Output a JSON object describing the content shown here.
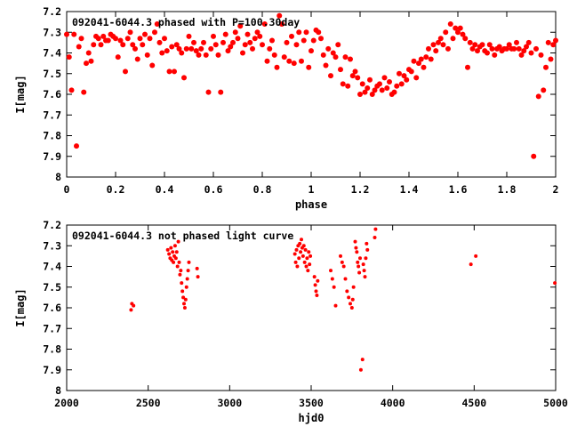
{
  "colors": {
    "points": "#ff0000",
    "axes": "#000000",
    "background": "#ffffff"
  },
  "chart_data": [
    {
      "type": "scatter",
      "title": "092041-6044.3 phased with P=100.30day",
      "xlabel": "phase",
      "ylabel": "I[mag]",
      "xlim": [
        0,
        2
      ],
      "ylim": [
        8,
        7.2
      ],
      "y_inverted": true,
      "grid": false,
      "xticks": [
        "0",
        "0.2",
        "0.4",
        "0.6",
        "0.8",
        "1",
        "1.2",
        "1.4",
        "1.6",
        "1.8",
        "2"
      ],
      "yticks": [
        "7.2",
        "7.3",
        "7.4",
        "7.5",
        "7.6",
        "7.7",
        "7.8",
        "7.9",
        "8"
      ],
      "points": [
        [
          0.0,
          7.31
        ],
        [
          0.01,
          7.42
        ],
        [
          0.02,
          7.58
        ],
        [
          0.03,
          7.31
        ],
        [
          0.04,
          7.85
        ],
        [
          0.05,
          7.37
        ],
        [
          0.06,
          7.33
        ],
        [
          0.07,
          7.59
        ],
        [
          0.08,
          7.45
        ],
        [
          0.09,
          7.4
        ],
        [
          0.1,
          7.44
        ],
        [
          0.11,
          7.36
        ],
        [
          0.12,
          7.32
        ],
        [
          0.13,
          7.33
        ],
        [
          0.14,
          7.36
        ],
        [
          0.15,
          7.32
        ],
        [
          0.16,
          7.34
        ],
        [
          0.17,
          7.34
        ],
        [
          0.18,
          7.31
        ],
        [
          0.19,
          7.32
        ],
        [
          0.2,
          7.33
        ],
        [
          0.21,
          7.42
        ],
        [
          0.22,
          7.34
        ],
        [
          0.23,
          7.36
        ],
        [
          0.24,
          7.49
        ],
        [
          0.25,
          7.33
        ],
        [
          0.26,
          7.3
        ],
        [
          0.27,
          7.36
        ],
        [
          0.28,
          7.38
        ],
        [
          0.29,
          7.43
        ],
        [
          0.3,
          7.33
        ],
        [
          0.31,
          7.36
        ],
        [
          0.32,
          7.31
        ],
        [
          0.33,
          7.41
        ],
        [
          0.34,
          7.33
        ],
        [
          0.35,
          7.46
        ],
        [
          0.36,
          7.3
        ],
        [
          0.37,
          7.26
        ],
        [
          0.38,
          7.35
        ],
        [
          0.39,
          7.4
        ],
        [
          0.4,
          7.33
        ],
        [
          0.41,
          7.39
        ],
        [
          0.42,
          7.49
        ],
        [
          0.43,
          7.37
        ],
        [
          0.44,
          7.49
        ],
        [
          0.45,
          7.36
        ],
        [
          0.46,
          7.38
        ],
        [
          0.47,
          7.4
        ],
        [
          0.48,
          7.52
        ],
        [
          0.49,
          7.38
        ],
        [
          0.5,
          7.32
        ],
        [
          0.51,
          7.38
        ],
        [
          0.52,
          7.35
        ],
        [
          0.53,
          7.39
        ],
        [
          0.54,
          7.41
        ],
        [
          0.55,
          7.38
        ],
        [
          0.56,
          7.35
        ],
        [
          0.57,
          7.41
        ],
        [
          0.58,
          7.59
        ],
        [
          0.59,
          7.38
        ],
        [
          0.6,
          7.32
        ],
        [
          0.61,
          7.36
        ],
        [
          0.62,
          7.41
        ],
        [
          0.63,
          7.59
        ],
        [
          0.64,
          7.35
        ],
        [
          0.65,
          7.31
        ],
        [
          0.66,
          7.39
        ],
        [
          0.67,
          7.37
        ],
        [
          0.68,
          7.35
        ],
        [
          0.69,
          7.3
        ],
        [
          0.7,
          7.33
        ],
        [
          0.71,
          7.27
        ],
        [
          0.72,
          7.4
        ],
        [
          0.73,
          7.36
        ],
        [
          0.74,
          7.31
        ],
        [
          0.75,
          7.35
        ],
        [
          0.76,
          7.38
        ],
        [
          0.77,
          7.33
        ],
        [
          0.78,
          7.3
        ],
        [
          0.79,
          7.32
        ],
        [
          0.8,
          7.36
        ],
        [
          0.81,
          7.26
        ],
        [
          0.82,
          7.44
        ],
        [
          0.83,
          7.38
        ],
        [
          0.84,
          7.34
        ],
        [
          0.85,
          7.41
        ],
        [
          0.86,
          7.47
        ],
        [
          0.87,
          7.22
        ],
        [
          0.88,
          7.26
        ],
        [
          0.89,
          7.42
        ],
        [
          0.9,
          7.35
        ],
        [
          0.91,
          7.44
        ],
        [
          0.92,
          7.32
        ],
        [
          0.93,
          7.45
        ],
        [
          0.94,
          7.36
        ],
        [
          0.95,
          7.3
        ],
        [
          0.96,
          7.44
        ],
        [
          0.97,
          7.34
        ],
        [
          0.98,
          7.3
        ],
        [
          0.99,
          7.47
        ],
        [
          1.0,
          7.39
        ],
        [
          1.01,
          7.34
        ],
        [
          1.02,
          7.29
        ],
        [
          1.03,
          7.3
        ],
        [
          1.04,
          7.33
        ],
        [
          1.05,
          7.41
        ],
        [
          1.06,
          7.46
        ],
        [
          1.07,
          7.38
        ],
        [
          1.08,
          7.51
        ],
        [
          1.09,
          7.4
        ],
        [
          1.1,
          7.42
        ],
        [
          1.11,
          7.36
        ],
        [
          1.12,
          7.48
        ],
        [
          1.13,
          7.55
        ],
        [
          1.14,
          7.42
        ],
        [
          1.15,
          7.56
        ],
        [
          1.16,
          7.43
        ],
        [
          1.17,
          7.51
        ],
        [
          1.18,
          7.49
        ],
        [
          1.19,
          7.52
        ],
        [
          1.2,
          7.6
        ],
        [
          1.21,
          7.55
        ],
        [
          1.22,
          7.59
        ],
        [
          1.23,
          7.57
        ],
        [
          1.24,
          7.53
        ],
        [
          1.25,
          7.6
        ],
        [
          1.26,
          7.58
        ],
        [
          1.27,
          7.56
        ],
        [
          1.28,
          7.55
        ],
        [
          1.29,
          7.58
        ],
        [
          1.3,
          7.52
        ],
        [
          1.31,
          7.57
        ],
        [
          1.32,
          7.54
        ],
        [
          1.33,
          7.6
        ],
        [
          1.34,
          7.59
        ],
        [
          1.35,
          7.56
        ],
        [
          1.36,
          7.5
        ],
        [
          1.37,
          7.55
        ],
        [
          1.38,
          7.51
        ],
        [
          1.39,
          7.53
        ],
        [
          1.4,
          7.48
        ],
        [
          1.41,
          7.49
        ],
        [
          1.42,
          7.44
        ],
        [
          1.43,
          7.52
        ],
        [
          1.44,
          7.45
        ],
        [
          1.45,
          7.43
        ],
        [
          1.46,
          7.47
        ],
        [
          1.47,
          7.42
        ],
        [
          1.48,
          7.38
        ],
        [
          1.49,
          7.43
        ],
        [
          1.5,
          7.36
        ],
        [
          1.51,
          7.39
        ],
        [
          1.52,
          7.35
        ],
        [
          1.53,
          7.33
        ],
        [
          1.54,
          7.36
        ],
        [
          1.55,
          7.3
        ],
        [
          1.56,
          7.38
        ],
        [
          1.57,
          7.26
        ],
        [
          1.58,
          7.33
        ],
        [
          1.59,
          7.28
        ],
        [
          1.6,
          7.3
        ],
        [
          1.61,
          7.28
        ],
        [
          1.62,
          7.31
        ],
        [
          1.63,
          7.33
        ],
        [
          1.64,
          7.47
        ],
        [
          1.65,
          7.35
        ],
        [
          1.66,
          7.38
        ],
        [
          1.67,
          7.36
        ],
        [
          1.68,
          7.39
        ],
        [
          1.69,
          7.37
        ],
        [
          1.7,
          7.36
        ],
        [
          1.71,
          7.39
        ],
        [
          1.72,
          7.4
        ],
        [
          1.73,
          7.36
        ],
        [
          1.74,
          7.38
        ],
        [
          1.75,
          7.41
        ],
        [
          1.76,
          7.38
        ],
        [
          1.77,
          7.37
        ],
        [
          1.78,
          7.39
        ],
        [
          1.79,
          7.38
        ],
        [
          1.8,
          7.38
        ],
        [
          1.81,
          7.36
        ],
        [
          1.82,
          7.38
        ],
        [
          1.83,
          7.38
        ],
        [
          1.84,
          7.35
        ],
        [
          1.85,
          7.38
        ],
        [
          1.86,
          7.41
        ],
        [
          1.87,
          7.39
        ],
        [
          1.88,
          7.37
        ],
        [
          1.89,
          7.35
        ],
        [
          1.9,
          7.4
        ],
        [
          1.91,
          7.9
        ],
        [
          1.92,
          7.38
        ],
        [
          1.93,
          7.61
        ],
        [
          1.94,
          7.41
        ],
        [
          1.95,
          7.58
        ],
        [
          1.96,
          7.47
        ],
        [
          1.97,
          7.35
        ],
        [
          1.98,
          7.43
        ],
        [
          1.99,
          7.36
        ],
        [
          2.0,
          7.34
        ]
      ]
    },
    {
      "type": "scatter",
      "title": "092041-6044.3 not phased light curve",
      "xlabel": "hjd0",
      "ylabel": "I[mag]",
      "xlim": [
        2000,
        5000
      ],
      "ylim": [
        8,
        7.2
      ],
      "y_inverted": true,
      "grid": false,
      "xticks": [
        "2000",
        "2500",
        "3000",
        "3500",
        "4000",
        "4500",
        "5000"
      ],
      "yticks": [
        "7.2",
        "7.3",
        "7.4",
        "7.5",
        "7.6",
        "7.7",
        "7.8",
        "7.9",
        "8"
      ],
      "points": [
        [
          2395,
          7.61
        ],
        [
          2400,
          7.58
        ],
        [
          2410,
          7.59
        ],
        [
          2620,
          7.32
        ],
        [
          2628,
          7.34
        ],
        [
          2635,
          7.36
        ],
        [
          2640,
          7.31
        ],
        [
          2645,
          7.37
        ],
        [
          2650,
          7.33
        ],
        [
          2655,
          7.38
        ],
        [
          2660,
          7.35
        ],
        [
          2665,
          7.3
        ],
        [
          2670,
          7.36
        ],
        [
          2675,
          7.33
        ],
        [
          2680,
          7.4
        ],
        [
          2685,
          7.28
        ],
        [
          2690,
          7.38
        ],
        [
          2695,
          7.44
        ],
        [
          2700,
          7.42
        ],
        [
          2705,
          7.48
        ],
        [
          2710,
          7.52
        ],
        [
          2715,
          7.55
        ],
        [
          2720,
          7.58
        ],
        [
          2725,
          7.6
        ],
        [
          2730,
          7.56
        ],
        [
          2735,
          7.5
        ],
        [
          2740,
          7.46
        ],
        [
          2745,
          7.42
        ],
        [
          2750,
          7.38
        ],
        [
          2800,
          7.41
        ],
        [
          2805,
          7.45
        ],
        [
          3400,
          7.34
        ],
        [
          3405,
          7.38
        ],
        [
          3410,
          7.32
        ],
        [
          3415,
          7.4
        ],
        [
          3420,
          7.3
        ],
        [
          3425,
          7.36
        ],
        [
          3430,
          7.29
        ],
        [
          3435,
          7.33
        ],
        [
          3440,
          7.27
        ],
        [
          3445,
          7.31
        ],
        [
          3450,
          7.35
        ],
        [
          3455,
          7.3
        ],
        [
          3460,
          7.38
        ],
        [
          3465,
          7.32
        ],
        [
          3470,
          7.4
        ],
        [
          3475,
          7.36
        ],
        [
          3480,
          7.42
        ],
        [
          3485,
          7.33
        ],
        [
          3490,
          7.39
        ],
        [
          3495,
          7.35
        ],
        [
          3520,
          7.45
        ],
        [
          3525,
          7.49
        ],
        [
          3530,
          7.52
        ],
        [
          3535,
          7.54
        ],
        [
          3540,
          7.47
        ],
        [
          3620,
          7.42
        ],
        [
          3630,
          7.46
        ],
        [
          3640,
          7.5
        ],
        [
          3650,
          7.59
        ],
        [
          3680,
          7.35
        ],
        [
          3690,
          7.38
        ],
        [
          3700,
          7.4
        ],
        [
          3710,
          7.46
        ],
        [
          3720,
          7.52
        ],
        [
          3730,
          7.55
        ],
        [
          3740,
          7.58
        ],
        [
          3750,
          7.6
        ],
        [
          3755,
          7.56
        ],
        [
          3760,
          7.5
        ],
        [
          3770,
          7.28
        ],
        [
          3775,
          7.31
        ],
        [
          3780,
          7.33
        ],
        [
          3785,
          7.38
        ],
        [
          3790,
          7.4
        ],
        [
          3795,
          7.43
        ],
        [
          3800,
          7.36
        ],
        [
          3805,
          7.9
        ],
        [
          3815,
          7.85
        ],
        [
          3820,
          7.39
        ],
        [
          3825,
          7.42
        ],
        [
          3830,
          7.45
        ],
        [
          3835,
          7.36
        ],
        [
          3840,
          7.29
        ],
        [
          3845,
          7.32
        ],
        [
          3890,
          7.26
        ],
        [
          3895,
          7.22
        ],
        [
          4480,
          7.39
        ],
        [
          4510,
          7.35
        ],
        [
          4995,
          7.48
        ]
      ]
    }
  ]
}
